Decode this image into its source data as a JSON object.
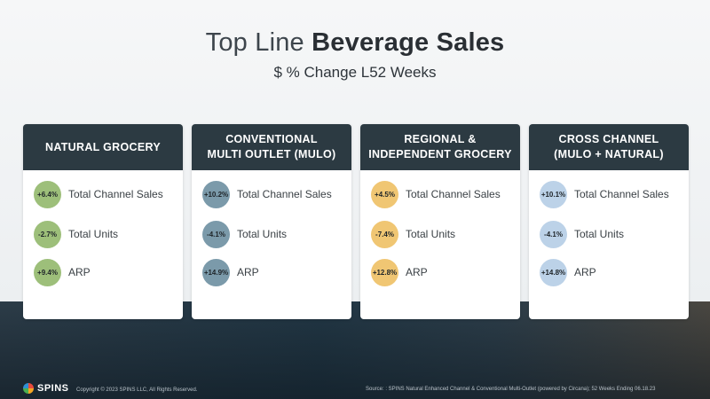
{
  "header": {
    "title_light": "Top Line",
    "title_bold": "Beverage Sales",
    "subtitle": "$ % Change L52 Weeks"
  },
  "cards": [
    {
      "title": "NATURAL GROCERY",
      "bubble_color": "#9dbf7a",
      "metrics": [
        {
          "value": "+6.4%",
          "label": "Total Channel Sales"
        },
        {
          "value": "-2.7%",
          "label": "Total Units"
        },
        {
          "value": "+9.4%",
          "label": "ARP"
        }
      ]
    },
    {
      "title": "CONVENTIONAL\nMULTI OUTLET (MULO)",
      "bubble_color": "#7b9aaa",
      "metrics": [
        {
          "value": "+10.2%",
          "label": "Total Channel Sales"
        },
        {
          "value": "-4.1%",
          "label": "Total Units"
        },
        {
          "value": "+14.9%",
          "label": "ARP"
        }
      ]
    },
    {
      "title": "REGIONAL &\nINDEPENDENT GROCERY",
      "bubble_color": "#f0c673",
      "metrics": [
        {
          "value": "+4.5%",
          "label": "Total Channel Sales"
        },
        {
          "value": "-7.4%",
          "label": "Total Units"
        },
        {
          "value": "+12.8%",
          "label": "ARP"
        }
      ]
    },
    {
      "title": "CROSS CHANNEL\n(MULO + NATURAL)",
      "bubble_color": "#bcd2e8",
      "metrics": [
        {
          "value": "+10.1%",
          "label": "Total Channel Sales"
        },
        {
          "value": "-4.1%",
          "label": "Total Units"
        },
        {
          "value": "+14.8%",
          "label": "ARP"
        }
      ]
    }
  ],
  "footer": {
    "logo": "SPINS",
    "copyright": "Copyright © 2023 SPINS LLC, All Rights Reserved.",
    "source": "Source: : SPINS Natural Enhanced Channel & Conventional Multi-Outlet (powered by Circana); 52 Weeks Ending 06.18.23"
  }
}
